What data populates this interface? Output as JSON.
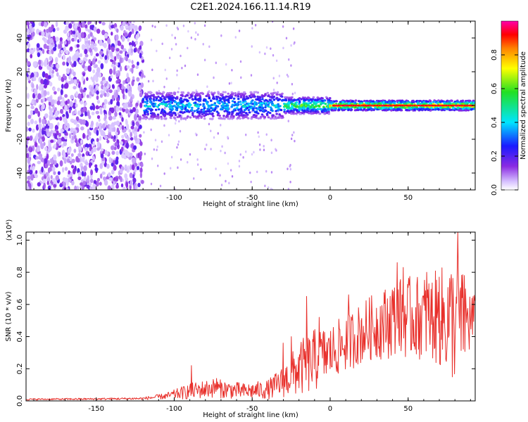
{
  "title": "C2E1.2024.166.11.14.R19",
  "chart_data": [
    {
      "type": "heatmap",
      "xlabel": "Height of straight line (km)",
      "ylabel": "Frequency (Hz)",
      "xlim": [
        -195,
        93
      ],
      "ylim": [
        -50,
        50
      ],
      "xticks": [
        -150,
        -100,
        -50,
        0,
        50
      ],
      "yticks": [
        -40,
        -20,
        0,
        20,
        40
      ],
      "colorbar": {
        "label": "Normalized spectral amplitude",
        "range": [
          0,
          1
        ],
        "ticks": [
          "0.0",
          "0.2",
          "0.4",
          "0.6",
          "0.8"
        ],
        "colormap": "rainbow (white-purple-blue-cyan-green-yellow-red-magenta)"
      },
      "regions": [
        {
          "x_range": [
            -195,
            -120
          ],
          "freq_range": [
            -50,
            50
          ],
          "amplitude": "low (0.0-0.2), scattered noise"
        },
        {
          "x_range": [
            -120,
            -30
          ],
          "freq_center": 0,
          "freq_halfwidth": 8,
          "amplitude": "0.3-0.6"
        },
        {
          "x_range": [
            -30,
            0
          ],
          "freq_center": 0,
          "freq_halfwidth": 5,
          "amplitude": "0.4-0.7"
        },
        {
          "x_range": [
            0,
            93
          ],
          "freq_center": 0,
          "freq_halfwidth": 3,
          "amplitude": "0.8-0.95"
        }
      ]
    },
    {
      "type": "line",
      "xlabel": "Height of straight line (km)",
      "ylabel": "SNR (10 * v/v)",
      "y_multiplier": "(x10⁴)",
      "xlim": [
        -195,
        93
      ],
      "ylim": [
        0,
        1.05
      ],
      "xticks": [
        -150,
        -100,
        -50,
        0,
        50
      ],
      "yticks": [
        "0.0",
        "0.2",
        "0.4",
        "0.6",
        "0.8",
        "1.0"
      ],
      "series": [
        {
          "color": "#e8302b",
          "envelope": [
            {
              "x": -195,
              "mean": 0.01,
              "amp": 0.005
            },
            {
              "x": -150,
              "mean": 0.012,
              "amp": 0.006
            },
            {
              "x": -120,
              "mean": 0.015,
              "amp": 0.008
            },
            {
              "x": -105,
              "mean": 0.03,
              "amp": 0.02
            },
            {
              "x": -90,
              "mean": 0.06,
              "amp": 0.05
            },
            {
              "x": -75,
              "mean": 0.08,
              "amp": 0.06
            },
            {
              "x": -55,
              "mean": 0.06,
              "amp": 0.05
            },
            {
              "x": -40,
              "mean": 0.07,
              "amp": 0.06
            },
            {
              "x": -30,
              "mean": 0.12,
              "amp": 0.1
            },
            {
              "x": -20,
              "mean": 0.2,
              "amp": 0.17
            },
            {
              "x": -10,
              "mean": 0.25,
              "amp": 0.2
            },
            {
              "x": 0,
              "mean": 0.3,
              "amp": 0.17
            },
            {
              "x": 10,
              "mean": 0.36,
              "amp": 0.18
            },
            {
              "x": 25,
              "mean": 0.45,
              "amp": 0.2
            },
            {
              "x": 45,
              "mean": 0.52,
              "amp": 0.25
            },
            {
              "x": 65,
              "mean": 0.52,
              "amp": 0.27
            },
            {
              "x": 80,
              "mean": 0.5,
              "amp": 0.4
            },
            {
              "x": 93,
              "mean": 0.5,
              "amp": 0.15
            }
          ],
          "peaks": [
            {
              "x": -89,
              "y": 0.22
            },
            {
              "x": -73,
              "y": 0.14
            },
            {
              "x": -30,
              "y": 0.36
            },
            {
              "x": -25,
              "y": 0.4
            },
            {
              "x": -15,
              "y": 0.65
            },
            {
              "x": -7,
              "y": 0.52
            },
            {
              "x": 12,
              "y": 0.66
            },
            {
              "x": 40,
              "y": 0.69
            },
            {
              "x": 43,
              "y": 0.86
            },
            {
              "x": 47,
              "y": 0.83
            },
            {
              "x": 62,
              "y": 0.8
            },
            {
              "x": 70,
              "y": 0.77
            },
            {
              "x": 82,
              "y": 1.05
            },
            {
              "x": 86,
              "y": 0.78
            }
          ]
        }
      ]
    }
  ]
}
